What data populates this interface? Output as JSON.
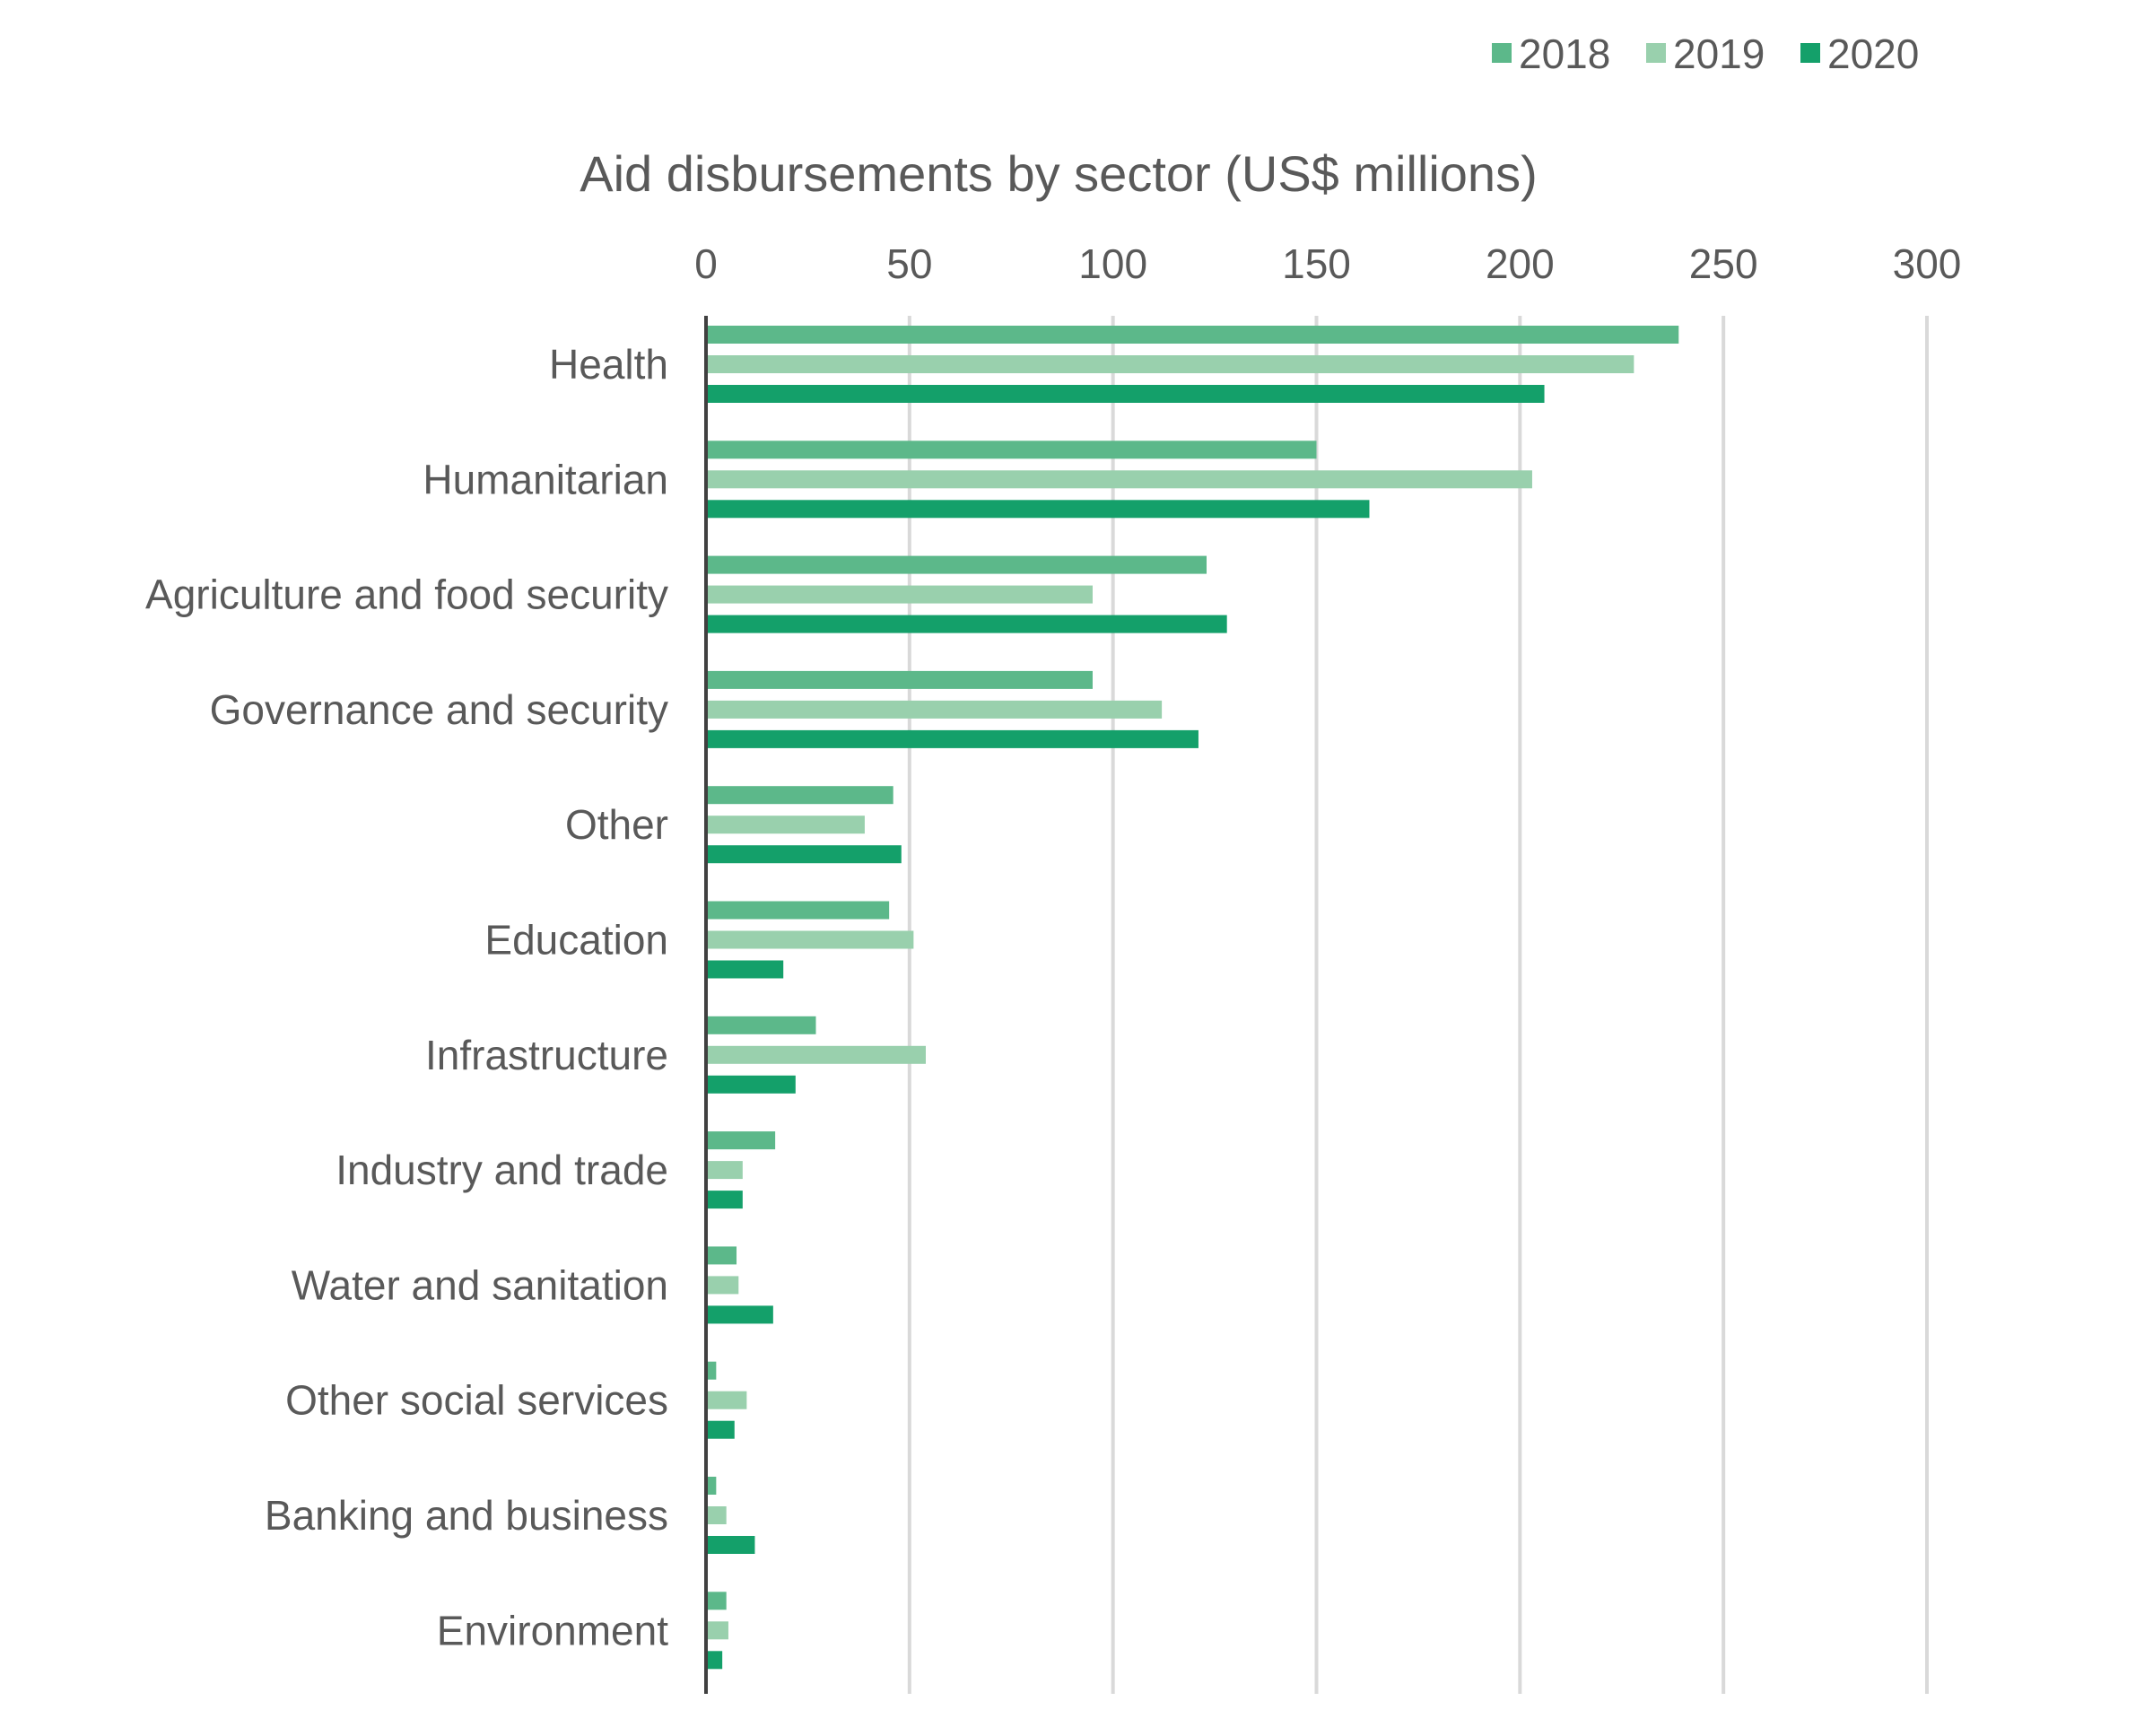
{
  "chart_data": {
    "type": "bar",
    "orientation": "horizontal",
    "title": "Aid disbursements by sector (US$ millions)",
    "xlabel": "",
    "ylabel": "",
    "xlim": [
      0,
      300
    ],
    "xticks": [
      0,
      50,
      100,
      150,
      200,
      250,
      300
    ],
    "x_axis_position": "top",
    "grid": true,
    "legend_position": "top-right",
    "categories": [
      "Health",
      "Humanitarian",
      "Agriculture and food security",
      "Governance and security",
      "Other",
      "Education",
      "Infrastructure",
      "Industry and trade",
      "Water and sanitation",
      "Other social services",
      "Banking and business",
      "Environment"
    ],
    "series": [
      {
        "name": "2018",
        "color": "#5cb88a",
        "values": [
          239,
          150,
          123,
          95,
          46,
          45,
          27,
          17,
          7.5,
          2.5,
          2.5,
          5
        ]
      },
      {
        "name": "2019",
        "color": "#99d0ad",
        "values": [
          228,
          203,
          95,
          112,
          39,
          51,
          54,
          9,
          8,
          10,
          5,
          5.5
        ]
      },
      {
        "name": "2020",
        "color": "#14a06a",
        "values": [
          206,
          163,
          128,
          121,
          48,
          19,
          22,
          9,
          16.5,
          7,
          12,
          4
        ]
      }
    ]
  }
}
